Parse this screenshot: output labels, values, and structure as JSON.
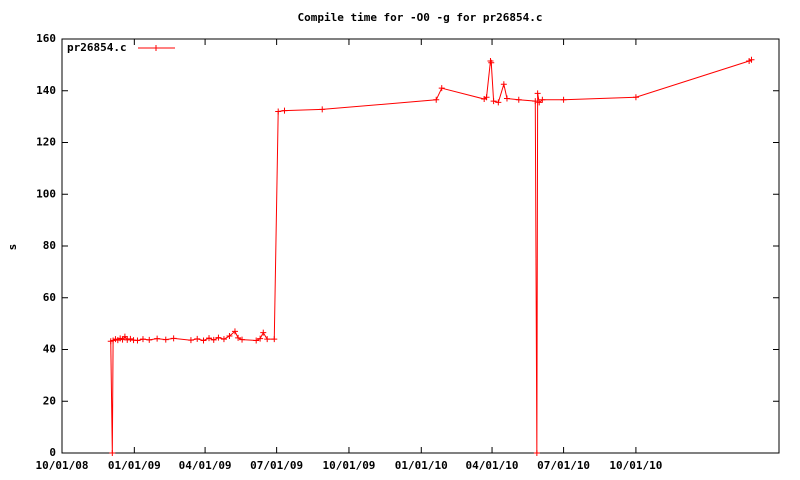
{
  "chart_data": {
    "type": "line",
    "title": "Compile time for -O0 -g for pr26854.c",
    "y_label": "s",
    "x": [
      "12/02/08",
      "12/04/08",
      "12/05/08",
      "12/08/08",
      "12/11/08",
      "12/14/08",
      "12/17/08",
      "12/20/08",
      "12/23/08",
      "12/27/08",
      "12/31/08",
      "01/05/09",
      "01/12/09",
      "01/20/09",
      "01/30/09",
      "02/10/09",
      "02/20/09",
      "03/14/09",
      "03/22/09",
      "03/30/09",
      "04/06/09",
      "04/12/09",
      "04/18/09",
      "04/25/09",
      "05/02/09",
      "05/09/09",
      "05/13/09",
      "05/18/09",
      "06/05/09",
      "06/10/09",
      "06/14/09",
      "06/19/09",
      "06/28/09",
      "07/03/09",
      "07/11/09",
      "08/28/09",
      "01/20/10",
      "01/27/10",
      "03/22/10",
      "03/25/10",
      "03/30/10",
      "03/31/10",
      "04/03/10",
      "04/09/10",
      "04/16/10",
      "04/20/10",
      "05/05/10",
      "05/26/10",
      "05/28/10",
      "05/29/10",
      "05/31/10",
      "06/04/10",
      "07/01/10",
      "10/01/10",
      "02/22/11",
      "02/25/11"
    ],
    "series": [
      {
        "name": "pr26854.c",
        "color": "#ff0000",
        "values": [
          43.2,
          0,
          43.5,
          44,
          43.6,
          44.3,
          43.8,
          45,
          43.7,
          44.1,
          43.6,
          43.5,
          44,
          43.7,
          44.2,
          43.8,
          44.3,
          43.6,
          44.1,
          43.5,
          44.4,
          43.7,
          44.6,
          44,
          45.2,
          47,
          44.5,
          43.8,
          43.5,
          44.2,
          46.5,
          44,
          44,
          132,
          132.3,
          132.8,
          136.5,
          141,
          136.8,
          137.5,
          151.5,
          150.8,
          136,
          135.5,
          142.5,
          137,
          136.5,
          136,
          0,
          139,
          135.5,
          136.5,
          136.5,
          137.5,
          151.5,
          152
        ]
      }
    ],
    "xlim": [
      "10/01/08",
      "04/01/11"
    ],
    "xticks": [
      "10/01/08",
      "01/01/09",
      "04/01/09",
      "07/01/09",
      "10/01/09",
      "01/01/10",
      "04/01/10",
      "07/01/10",
      "10/01/10"
    ],
    "ylim": [
      0,
      160
    ],
    "yticks": [
      0,
      20,
      40,
      60,
      80,
      100,
      120,
      140,
      160
    ],
    "legend": "top-left"
  }
}
